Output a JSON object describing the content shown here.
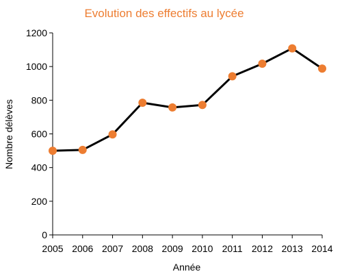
{
  "chart_data": {
    "type": "line",
    "title": "Evolution des effectifs au lycée",
    "xlabel": "Année",
    "ylabel": "Nombre délèves",
    "x": [
      2005,
      2006,
      2007,
      2008,
      2009,
      2010,
      2011,
      2012,
      2013,
      2014
    ],
    "x_tick_labels": [
      "2005",
      "2006",
      "2007",
      "2008",
      "2009",
      "2010",
      "2011",
      "2012",
      "2013",
      "2014"
    ],
    "y_tick_labels": [
      "0",
      "200",
      "400",
      "600",
      "800",
      "1000",
      "1200"
    ],
    "series": [
      {
        "values": [
          500,
          505,
          597,
          785,
          757,
          772,
          942,
          1017,
          1108,
          988
        ]
      }
    ],
    "ylim": [
      0,
      1200
    ],
    "grid": false,
    "legend": "none",
    "colors": {
      "title": "#ED7D31",
      "line": "#000000",
      "marker": "#ED7D31"
    }
  }
}
